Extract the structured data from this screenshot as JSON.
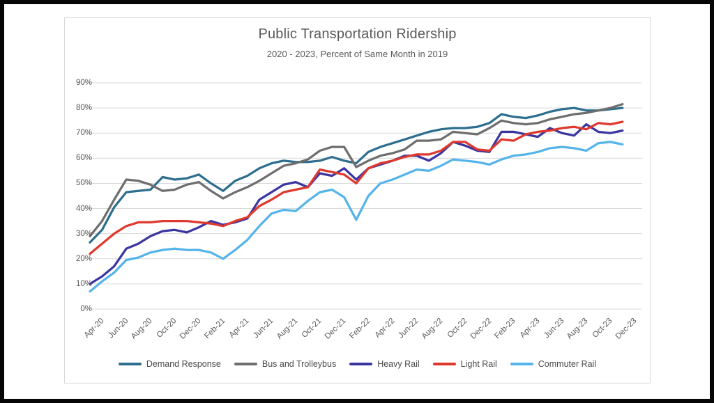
{
  "window": {
    "frame_color": "#060606",
    "page_background": "#ffffff",
    "card_border": "#D9D9D9"
  },
  "chart_data": {
    "type": "line",
    "title": "Public Transportation Ridership",
    "subtitle": "2020 - 2023, Percent of Same Month in 2019",
    "grid": "horizontal",
    "gridline_color": "#D9D9D9",
    "text_color": "#595959",
    "legend_position": "bottom",
    "ylim": [
      0,
      90
    ],
    "ytick_step": 10,
    "ytick_labels": [
      "0%",
      "10%",
      "20%",
      "30%",
      "40%",
      "50%",
      "60%",
      "70%",
      "80%",
      "90%"
    ],
    "x_tick_every": 2,
    "categories": [
      "Apr-20",
      "May-20",
      "Jun-20",
      "Jul-20",
      "Aug-20",
      "Sep-20",
      "Oct-20",
      "Nov-20",
      "Dec-20",
      "Jan-21",
      "Feb-21",
      "Mar-21",
      "Apr-21",
      "May-21",
      "Jun-21",
      "Jul-21",
      "Aug-21",
      "Sep-21",
      "Oct-21",
      "Nov-21",
      "Dec-21",
      "Jan-22",
      "Feb-22",
      "Mar-22",
      "Apr-22",
      "May-22",
      "Jun-22",
      "Jul-22",
      "Aug-22",
      "Sep-22",
      "Oct-22",
      "Nov-22",
      "Dec-22",
      "Jan-23",
      "Feb-23",
      "Mar-23",
      "Apr-23",
      "May-23",
      "Jun-23",
      "Jul-23",
      "Aug-23",
      "Sep-23",
      "Oct-23",
      "Nov-23",
      "Dec-23"
    ],
    "visible_x_tick_labels": [
      "Apr-20",
      "Jun-20",
      "Aug-20",
      "Oct-20",
      "Dec-20",
      "Feb-21",
      "Apr-21",
      "Jun-21",
      "Aug-21",
      "Oct-21",
      "Dec-21",
      "Feb-22",
      "Apr-22",
      "Jun-22",
      "Aug-22",
      "Oct-22",
      "Dec-22",
      "Feb-23",
      "Apr-23",
      "Jun-23",
      "Aug-23",
      "Oct-23",
      "Dec-23"
    ],
    "series": [
      {
        "name": "Demand Response",
        "color": "#2E6E8F",
        "values": [
          26.5,
          31.5,
          40.5,
          46.5,
          47,
          47.5,
          52.5,
          51.5,
          52,
          53.5,
          50,
          47,
          51,
          53,
          56,
          58,
          59,
          58.5,
          58.5,
          59,
          60.5,
          59,
          58,
          62.5,
          64.5,
          66,
          67.5,
          69,
          70.5,
          71.5,
          72,
          72,
          72.5,
          74,
          77.5,
          76.5,
          76,
          77,
          78.5,
          79.5,
          80,
          79,
          79,
          79.5,
          80
        ]
      },
      {
        "name": "Bus and Trolleybus",
        "color": "#6E6E6E",
        "values": [
          29,
          35,
          43.5,
          51.5,
          51,
          49.5,
          47,
          47.5,
          49.5,
          50.5,
          47,
          44,
          46.5,
          48.5,
          51,
          54,
          57,
          58,
          59.5,
          63,
          64.5,
          64.5,
          56.5,
          59,
          61,
          62,
          63.5,
          67,
          67,
          67.5,
          70.5,
          70,
          69.5,
          72,
          75,
          74,
          73.5,
          74,
          75.5,
          76.5,
          77.5,
          78,
          79,
          80,
          81.5
        ]
      },
      {
        "name": "Heavy Rail",
        "color": "#3B35A0",
        "values": [
          10,
          13,
          17,
          24,
          26,
          29,
          31,
          31.5,
          30.5,
          32.5,
          35,
          33.5,
          34.5,
          36,
          43.5,
          46.5,
          49.5,
          50.5,
          48.5,
          54,
          53,
          56,
          51.5,
          56,
          57.5,
          59,
          61,
          61,
          59,
          62,
          66.5,
          65,
          63,
          62.5,
          70.5,
          70.5,
          69.5,
          68.5,
          72,
          70,
          69,
          73.5,
          70.5,
          70,
          71
        ]
      },
      {
        "name": "Light Rail",
        "color": "#DF392E",
        "values": [
          22,
          26,
          30,
          33,
          34.5,
          34.5,
          35,
          35,
          35,
          34.5,
          34,
          33,
          35,
          36.5,
          41,
          43.5,
          46.5,
          47.5,
          48.5,
          55.5,
          54.5,
          53.5,
          50,
          56,
          58,
          59,
          60.5,
          61.5,
          61.5,
          63,
          66.5,
          66.5,
          63.5,
          63,
          67.5,
          67,
          69.5,
          70.5,
          71,
          72,
          72.5,
          71.5,
          74,
          73.5,
          74.5
        ]
      },
      {
        "name": "Commuter Rail",
        "color": "#55B4EA",
        "values": [
          7,
          11,
          14.5,
          19.5,
          20.5,
          22.5,
          23.5,
          24,
          23.5,
          23.5,
          22.5,
          20,
          23.5,
          27.5,
          33,
          38,
          39.5,
          39,
          43,
          46.5,
          47.5,
          44.5,
          35.5,
          45,
          50,
          51.5,
          53.5,
          55.5,
          55,
          57,
          59.5,
          59,
          58.5,
          57.5,
          59.5,
          61,
          61.5,
          62.5,
          64,
          64.5,
          64,
          63,
          66,
          66.5,
          65.5
        ]
      }
    ]
  }
}
